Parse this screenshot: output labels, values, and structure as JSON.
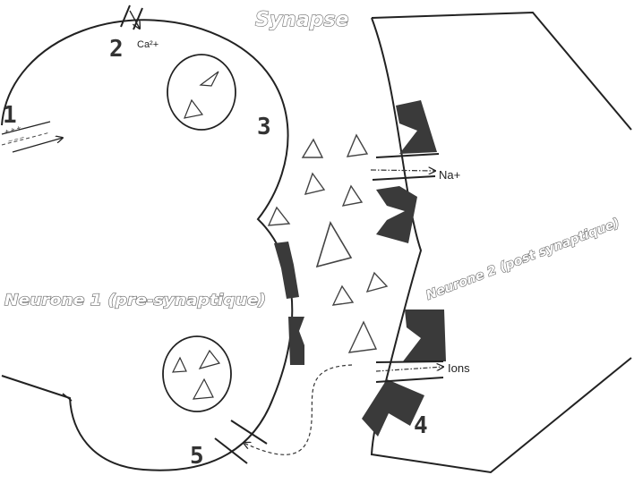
{
  "title": "Synapse",
  "neuron1_label": "Neurone 1 (pre-synaptique)",
  "neuron2_label": "Neurone 2 (post synaptique)",
  "markers": {
    "m1": "1",
    "m2": "2",
    "m3": "3",
    "m4": "4",
    "m5": "5"
  },
  "ion_labels": {
    "calcium": "Ca²+",
    "sodium": "Na+",
    "ions": "Ions"
  },
  "membrane_signs": {
    "upper": "+ + +",
    "lower": "– – –"
  },
  "colors": {
    "line": "#222222",
    "receptor": "#3a3a3a",
    "text_outline": "#6a6a6a",
    "background": "#ffffff"
  }
}
